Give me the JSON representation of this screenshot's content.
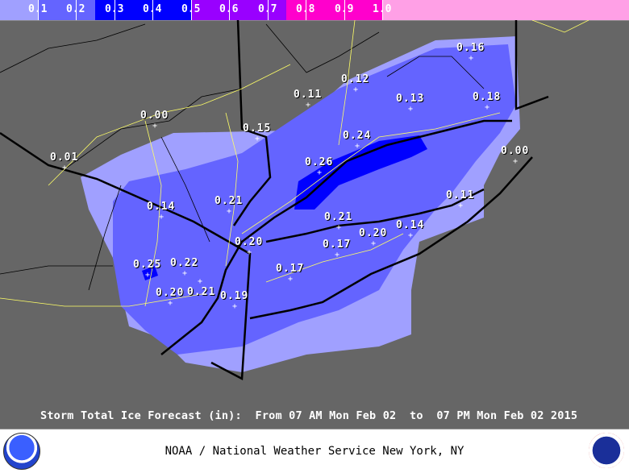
{
  "legend": {
    "bins": [
      {
        "color": "#a0a0ff"
      },
      {
        "color": "#6464ff"
      },
      {
        "color": "#0000ff"
      },
      {
        "color": "#9900ff"
      },
      {
        "color": "#ff00cc"
      },
      {
        "color": "#ffa0e6"
      }
    ],
    "labels": [
      "0.1",
      "0.2",
      "0.3",
      "0.4",
      "0.5",
      "0.6",
      "0.7",
      "0.8",
      "0.9",
      "1.0"
    ]
  },
  "colors": {
    "background": "#666666",
    "light": "#a0a0ff",
    "medium": "#6464ff",
    "heavy": "#0000ff",
    "roads": "#ffff66",
    "borders": "#000000"
  },
  "stations": [
    "0.16",
    "0.12",
    "0.11",
    "0.13",
    "0.18",
    "0.00",
    "0.15",
    "0.24",
    "0.01",
    "0.26",
    "0.00",
    "0.11",
    "0.14",
    "0.21",
    "0.21",
    "0.14",
    "0.20",
    "0.20",
    "0.17",
    "0.25",
    "0.22",
    "0.21",
    "0.17",
    "0.20",
    "0.19"
  ],
  "caption": "Storm Total Ice Forecast (in):  From 07 AM Mon Feb 02  to  07 PM Mon Feb 02 2015",
  "footer": {
    "credit": "NOAA / National Weather Service New York, NY",
    "left_logo": "NOAA",
    "right_logo": "NATIONAL WEATHER SERVICE"
  }
}
